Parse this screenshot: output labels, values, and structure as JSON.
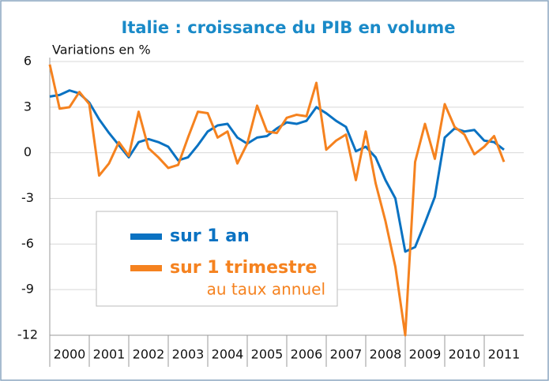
{
  "chart_data": {
    "type": "line",
    "title": "Italie : croissance du PIB en volume",
    "y_label": "Variations en %",
    "categories": [
      "2000",
      null,
      null,
      null,
      "2001",
      null,
      null,
      null,
      "2002",
      null,
      null,
      null,
      "2003",
      null,
      null,
      null,
      "2004",
      null,
      null,
      null,
      "2005",
      null,
      null,
      null,
      "2006",
      null,
      null,
      null,
      "2007",
      null,
      null,
      null,
      "2008",
      null,
      null,
      null,
      "2009",
      null,
      null,
      null,
      "2010",
      null,
      null,
      null,
      "2011",
      null,
      null,
      null
    ],
    "series": [
      {
        "name": "sur 1 an",
        "color": "#0a72c2",
        "values": [
          3.7,
          3.8,
          4.1,
          3.9,
          3.3,
          2.2,
          1.3,
          0.5,
          -0.3,
          0.7,
          0.9,
          0.7,
          0.4,
          -0.5,
          -0.3,
          0.5,
          1.4,
          1.8,
          1.9,
          1.0,
          0.6,
          1.0,
          1.1,
          1.6,
          2.0,
          1.9,
          2.1,
          3.0,
          2.6,
          2.1,
          1.7,
          0.1,
          0.4,
          -0.3,
          -1.8,
          -3.0,
          -6.5,
          -6.2,
          -4.6,
          -2.9,
          1.0,
          1.6,
          1.4,
          1.5,
          0.8,
          0.7,
          0.2,
          null
        ]
      },
      {
        "name": "sur 1 trimestre",
        "color": "#f5821f",
        "values": [
          5.8,
          2.9,
          3.0,
          4.0,
          3.2,
          -1.5,
          -0.7,
          0.7,
          -0.2,
          2.7,
          0.3,
          -0.3,
          -1.0,
          -0.8,
          1.0,
          2.7,
          2.6,
          1.0,
          1.4,
          -0.7,
          0.6,
          3.1,
          1.4,
          1.3,
          2.3,
          2.5,
          2.4,
          4.6,
          0.2,
          0.8,
          1.2,
          -1.8,
          1.4,
          -2.0,
          -4.5,
          -7.5,
          -12.0,
          -0.6,
          1.9,
          -0.4,
          3.2,
          1.7,
          1.2,
          -0.1,
          0.4,
          1.1,
          -0.6,
          null
        ]
      }
    ],
    "legend_note": "au taux annuel",
    "ylim": [
      -12,
      6
    ],
    "yticks": [
      6,
      3,
      0,
      -3,
      -6,
      -9,
      -12
    ],
    "grid": true
  }
}
